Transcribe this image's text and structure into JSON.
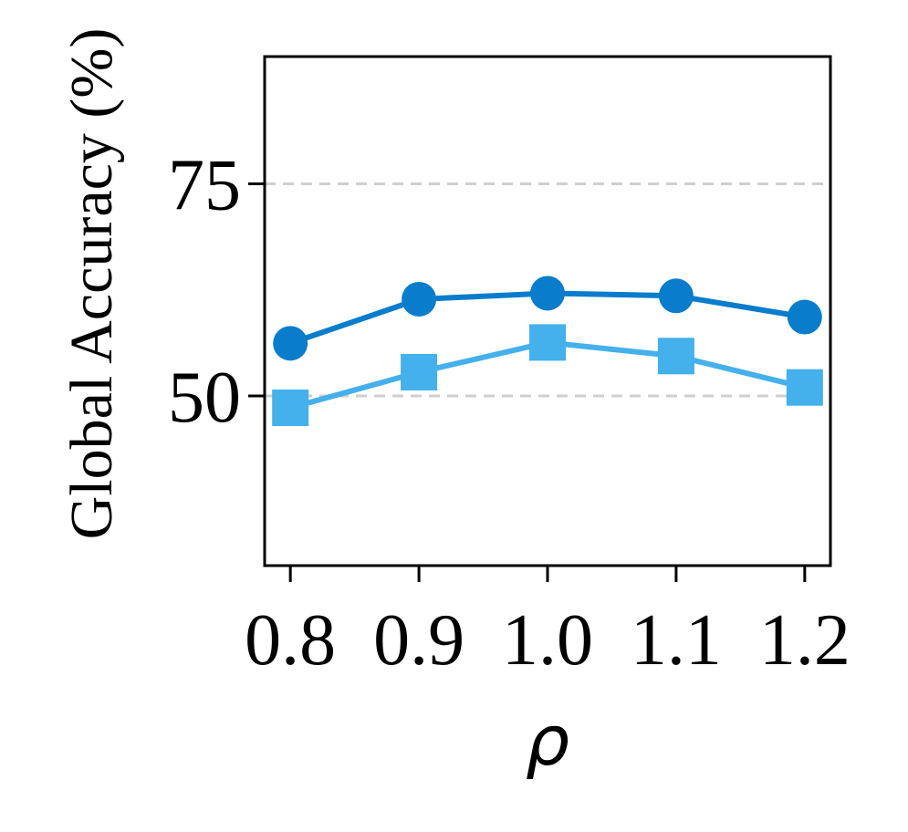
{
  "chart_data": {
    "type": "line",
    "title": "",
    "xlabel": "ρ",
    "ylabel": "Global Accuracy (%)",
    "x": [
      0.8,
      0.9,
      1.0,
      1.1,
      1.2
    ],
    "x_tick_labels": [
      "0.8",
      "0.9",
      "1.0",
      "1.1",
      "1.2"
    ],
    "y_ticks": [
      50,
      75
    ],
    "y_tick_labels": [
      "50",
      "75"
    ],
    "xlim": [
      0.78,
      1.22
    ],
    "ylim": [
      30,
      90
    ],
    "grid": "horizontal dashed",
    "series": [
      {
        "values": [
          56.2,
          61.4,
          62.1,
          61.8,
          59.3
        ],
        "color": "#0a7ccc",
        "marker": "circle"
      },
      {
        "values": [
          48.6,
          52.8,
          56.3,
          54.7,
          51.0
        ],
        "color": "#44b0ec",
        "marker": "square"
      }
    ]
  }
}
